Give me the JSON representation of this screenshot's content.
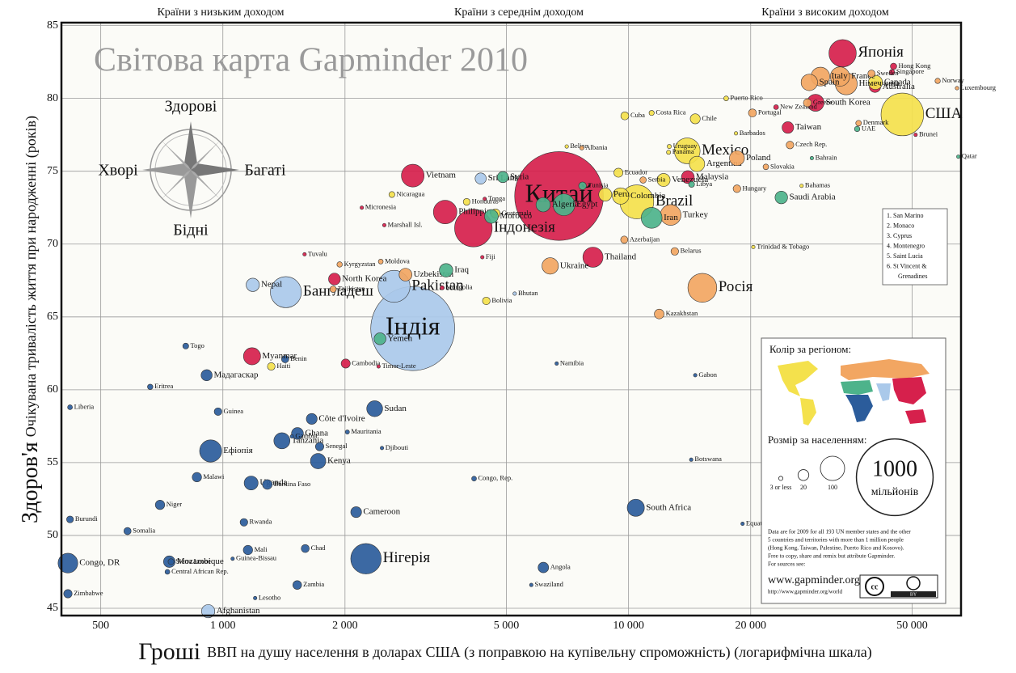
{
  "chart_data": {
    "type": "scatter",
    "title": "Світова карта Gapminder 2010",
    "income_groups": [
      "Країни з низьким доходом",
      "Країни з середнім доходом",
      "Країни з високим доходом"
    ],
    "compass": {
      "up": "Здорові",
      "left": "Хворі",
      "right": "Багаті",
      "down": "Бідні"
    },
    "y_label": {
      "main": "Здоров'я",
      "detail": "Очікувана тривалість життя при народженні (років)"
    },
    "x_label": {
      "main": "Гроші",
      "detail": "ВВП на душу населення в доларах США (з поправкою на купівельну спроможність) (логарифмічна шкала)"
    },
    "x_log": true,
    "grid": true,
    "xlim": [
      400,
      66000
    ],
    "ylim": [
      44.5,
      85.2
    ],
    "xticks": [
      500,
      {
        "value": 1000,
        "label": "1 000"
      },
      {
        "value": 2000,
        "label": "2 000"
      },
      {
        "value": 5000,
        "label": "5 000"
      },
      {
        "value": 10000,
        "label": "10 000"
      },
      {
        "value": 20000,
        "label": "20 000"
      },
      {
        "value": 50000,
        "label": "50 000"
      }
    ],
    "yticks": [
      45,
      50,
      55,
      60,
      65,
      70,
      75,
      80,
      85
    ],
    "series": [
      {
        "color": "#2b5c9b",
        "labels": [
          "Нігерія",
          "Ефіопія",
          "Congo, DR",
          "South Africa",
          "Tanzania",
          "Sudan",
          "Kenya",
          "Uganda",
          "Ghana",
          "Mozambique",
          "Мадагаскар",
          "Côte d'Ivoire",
          "Cameroon",
          "Angola",
          "Burkina Faso",
          "Malawi",
          "Niger",
          "Mali",
          "Zambia",
          "Senegal",
          "Zimbabwe",
          "Chad",
          "Guinea",
          "Rwanda",
          "Somalia",
          "Benin",
          "Burundi",
          "Togo",
          "Sierra Leone",
          "Eritrea",
          "Liberia",
          "Central African Rep.",
          "Congo, Rep.",
          "Mauritania",
          "Namibia",
          "Botswana",
          "Lesotho",
          "Gambia",
          "Guinea-Bissau",
          "Gabon",
          "Swaziland",
          "Djibouti",
          "Equatorial Guinea"
        ],
        "x": [
          2253,
          933,
          415,
          10420,
          1398,
          2367,
          1717,
          1174,
          1527,
          738,
          912,
          1656,
          2131,
          6166,
          1287,
          863,
          700,
          1153,
          1525,
          1732,
          415,
          1596,
          973,
          1127,
          582,
          1424,
          420,
          810,
          745,
          662,
          420,
          730,
          4161,
          2027,
          6650,
          14270,
          1201,
          1480,
          1057,
          14600,
          5758,
          2467,
          19100
        ],
        "values": [
          48.4,
          55.8,
          48.1,
          51.9,
          56.5,
          58.7,
          55.1,
          53.6,
          57,
          48.2,
          61,
          58,
          51.6,
          47.8,
          53.5,
          54,
          52.1,
          49,
          46.6,
          56.1,
          46,
          49.1,
          58.5,
          50.9,
          50.3,
          62.1,
          51.1,
          63,
          48.2,
          60.2,
          58.8,
          47.5,
          53.9,
          57.1,
          61.8,
          55.2,
          45.7,
          56.8,
          48.4,
          61,
          46.6,
          56,
          50.8
        ],
        "sizes": [
          158,
          83,
          66,
          50,
          44,
          43,
          40,
          33,
          24,
          23,
          21,
          20,
          20,
          19,
          16,
          15,
          15,
          15,
          13,
          12,
          12,
          11,
          10,
          10,
          9,
          9,
          8,
          6,
          6,
          5,
          4,
          4,
          4,
          3,
          2,
          2,
          2,
          2,
          2,
          1.5,
          1,
          1,
          1
        ]
      },
      {
        "color": "#aac9ea",
        "labels": [
          "Індія",
          "Pakistan",
          "Бангладеш",
          "Afghanistan",
          "Nepal",
          "Sri Lanka",
          "Bhutan"
        ],
        "x": [
          2938,
          2642,
          1430,
          920,
          1185,
          4320,
          5240
        ],
        "values": [
          64.2,
          67.1,
          66.7,
          44.8,
          67.2,
          74.5,
          66.6
        ],
        "sizes": [
          1200,
          174,
          164,
          30,
          30,
          21,
          0.7
        ]
      },
      {
        "color": "#d6204c",
        "labels": [
          "Китай",
          "Індонезія",
          "Японія",
          "Philippines",
          "Vietnam",
          "Thailand",
          "Myanmar",
          "South Korea",
          "Malaysia",
          "North Korea",
          "Taiwan",
          "Australia",
          "Cambodia",
          "Hong Kong",
          "Singapore",
          "New Zealand",
          "Mongolia",
          "Timor-Leste",
          "Fiji",
          "Brunei",
          "Micronesia",
          "Marshall Isl.",
          "Tuvalu",
          "Tonga"
        ],
        "x": [
          6740,
          4145,
          33700,
          3531,
          2938,
          8170,
          1180,
          28900,
          14000,
          1884,
          24700,
          40500,
          2008,
          45000,
          44600,
          23100,
          3470,
          2420,
          4360,
          51000,
          2200,
          2500,
          1590,
          4420
        ],
        "values": [
          73.3,
          71.1,
          83.1,
          72.2,
          74.7,
          69.1,
          62.3,
          79.7,
          74.6,
          67.6,
          78,
          80.8,
          61.8,
          82.2,
          81.8,
          79.4,
          67,
          61.6,
          69.1,
          77.5,
          72.5,
          71.3,
          69.3,
          73.1
        ],
        "sizes": [
          1340,
          240,
          127,
          94,
          88,
          69,
          50,
          49,
          28,
          24,
          23,
          22,
          14,
          7,
          5,
          4,
          3,
          1,
          1,
          0.4,
          0.1,
          0.1,
          0.01,
          0.1
        ]
      },
      {
        "color": "#f4e14c",
        "labels": [
          "США",
          "Brazil",
          "Mexico",
          "Colombia",
          "Argentina",
          "Canada",
          "Peru",
          "Venezuela",
          "Chile",
          "Ecuador",
          "Guatemala",
          "Cuba",
          "Bolivia",
          "Haiti",
          "Honduras",
          "Nicaragua",
          "Costa Rica",
          "Puerto Rico",
          "Uruguay",
          "Panama",
          "Trinidad & Tobago",
          "Bahamas",
          "Barbados",
          "Belize"
        ],
        "x": [
          47300,
          10480,
          13950,
          9560,
          14750,
          40600,
          8760,
          12200,
          14600,
          9440,
          4700,
          9790,
          4460,
          1316,
          3990,
          2610,
          11400,
          17400,
          12600,
          12550,
          20300,
          26700,
          18400,
          7040
        ],
        "values": [
          78.9,
          72.9,
          76.4,
          73.3,
          75.5,
          81.1,
          73.4,
          74.4,
          78.6,
          74.9,
          72.1,
          78.8,
          66.1,
          61.6,
          72.9,
          73.4,
          79,
          80,
          76.7,
          76.3,
          69.8,
          74,
          77.6,
          76.7
        ],
        "sizes": [
          309,
          195,
          113,
          46,
          40,
          34,
          29,
          29,
          17,
          14,
          14,
          11,
          10,
          10,
          8,
          6,
          4.6,
          4,
          3,
          3,
          1.3,
          0.3,
          0.3,
          0.3
        ]
      },
      {
        "color": "#f2a662",
        "labels": [
          "Росія",
          "Німеччина",
          "Turkey",
          "France",
          "Italy",
          "Ukraine",
          "Spain",
          "Poland",
          "Uzbekistan",
          "Kazakhstan",
          "Greece",
          "Portugal",
          "Czech Rep.",
          "Belarus",
          "Hungary",
          "Sweden",
          "Azerbaijan",
          "Tajikistan",
          "Serbia",
          "Denmark",
          "Slovakia",
          "Norway",
          "Kyrgyzstan",
          "Moldova",
          "Albania",
          "Luxembourg"
        ],
        "x": [
          15200,
          34400,
          12700,
          33200,
          29700,
          6410,
          27900,
          18500,
          2820,
          11900,
          27600,
          20200,
          25000,
          13000,
          18500,
          39700,
          9760,
          1870,
          10860,
          36900,
          21800,
          57800,
          1940,
          2450,
          7670,
          64500
        ],
        "values": [
          67,
          81,
          72,
          81.5,
          81.5,
          68.5,
          81.1,
          75.9,
          67.9,
          65.2,
          79.7,
          79,
          76.8,
          69.5,
          73.8,
          81.7,
          70.3,
          66.9,
          74.4,
          78.3,
          75.3,
          81.2,
          68.6,
          68.8,
          76.6,
          80.7
        ],
        "sizes": [
          142,
          82,
          73,
          63,
          60,
          46,
          46,
          38,
          28,
          16,
          11,
          11,
          10,
          10,
          10,
          9,
          9,
          7,
          7,
          5.5,
          5.4,
          4.9,
          5,
          4,
          3,
          0.5
        ]
      },
      {
        "color": "#4db38b",
        "labels": [
          "Egypt",
          "Iran",
          "Algeria",
          "Morocco",
          "Iraq",
          "Saudi Arabia",
          "Yemen",
          "Syria",
          "Tunisia",
          "Libya",
          "UAE",
          "Bahrain",
          "Qatar"
        ],
        "x": [
          6930,
          11400,
          6160,
          4590,
          3550,
          23800,
          2440,
          4900,
          7700,
          14300,
          36600,
          28300,
          65000
        ],
        "values": [
          72.7,
          71.8,
          72.7,
          71.9,
          68.2,
          73.2,
          63.5,
          74.6,
          74,
          74.1,
          77.9,
          75.9,
          76
        ],
        "sizes": [
          81,
          74,
          35,
          32,
          31,
          27,
          24,
          21,
          10,
          6,
          5,
          1.2,
          1.7
        ]
      }
    ],
    "notes": [
      "1. San Marino",
      "2. Monaco",
      "3. Cyprus",
      "4. Montenegro",
      "5. Saint Lucia",
      "6. St Vincent &",
      "Grenadines"
    ],
    "color_legend_title": "Колір за регіоном:",
    "size_legend": {
      "title": "Розмір за населенням:",
      "values": [
        3,
        20,
        100,
        1000
      ],
      "labels": [
        "3 or less",
        "20",
        "100",
        "1000"
      ],
      "unit": "мільйонів"
    },
    "footnote": [
      "Data are for 2009 for all 193 UN member states and the other",
      "5 countries and territories with more than 1 million people",
      "(Hong Kong, Taiwan, Palestine, Puerto Rico and Kosovo).",
      "Free to copy, share and remix but attribute Gapminder.",
      "For sources see:"
    ],
    "website": "www.gapminder.org",
    "url": "http://www.gapminder.org/world",
    "license": [
      "cc",
      "BY"
    ]
  }
}
